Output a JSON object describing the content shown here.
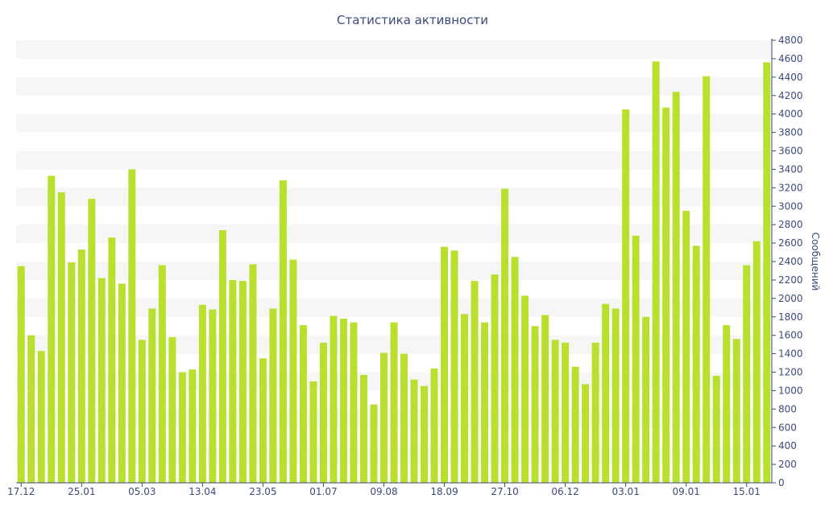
{
  "chart_data": {
    "type": "bar",
    "title": "Статистика активности",
    "xlabel": "",
    "ylabel": "Сообщений",
    "ylim": [
      0,
      4800
    ],
    "yticks": [
      0,
      200,
      400,
      600,
      800,
      1000,
      1200,
      1400,
      1600,
      1800,
      2000,
      2200,
      2400,
      2600,
      2800,
      3000,
      3200,
      3400,
      3600,
      3800,
      4000,
      4200,
      4400,
      4600,
      4800
    ],
    "x_tick_labels": [
      {
        "index": 0,
        "label": "17.12"
      },
      {
        "index": 6,
        "label": "25.01"
      },
      {
        "index": 12,
        "label": "05.03"
      },
      {
        "index": 18,
        "label": "13.04"
      },
      {
        "index": 24,
        "label": "23.05"
      },
      {
        "index": 30,
        "label": "01.07"
      },
      {
        "index": 36,
        "label": "09.08"
      },
      {
        "index": 42,
        "label": "18.09"
      },
      {
        "index": 48,
        "label": "27.10"
      },
      {
        "index": 54,
        "label": "06.12"
      },
      {
        "index": 60,
        "label": "03.01"
      },
      {
        "index": 66,
        "label": "09.01"
      },
      {
        "index": 72,
        "label": "15.01"
      }
    ],
    "y_axis_position": "right",
    "grid": "horizontal alternating bands",
    "bar_color": "#b9e02f",
    "band_color": "#f6f6f6",
    "axis_color": "#3b4a7a",
    "values": [
      2350,
      1600,
      1430,
      3330,
      3150,
      2390,
      2530,
      3080,
      2220,
      2660,
      2160,
      3400,
      1550,
      1890,
      2360,
      1580,
      1200,
      1230,
      1930,
      1880,
      2740,
      2200,
      2190,
      2370,
      1350,
      1890,
      3280,
      2420,
      1710,
      1100,
      1520,
      1810,
      1780,
      1740,
      1170,
      850,
      1410,
      1740,
      1400,
      1120,
      1050,
      1240,
      2560,
      2520,
      1830,
      2190,
      1740,
      2260,
      3190,
      2450,
      2030,
      1700,
      1820,
      1550,
      1520,
      1260,
      1070,
      1520,
      1940,
      1890,
      4050,
      2680,
      1800,
      4570,
      4070,
      4240,
      2950,
      2570,
      4410,
      1160,
      1710,
      1560,
      2360,
      2620,
      4560
    ]
  }
}
